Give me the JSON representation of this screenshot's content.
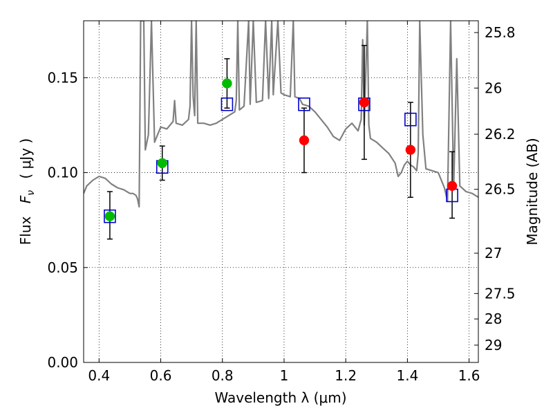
{
  "chart_data": {
    "type": "scatter",
    "xlabel": "Wavelength  λ (μm)",
    "ylabel": "Flux  F_ν  ( μJy )",
    "ylabel_parts": {
      "prefix": "Flux",
      "symbol": "F",
      "subscript": "ν",
      "unit": "( μJy )"
    },
    "ylabel_right": "Magnitude (AB)",
    "xlim": [
      0.35,
      1.63
    ],
    "ylim": [
      0.0,
      0.18
    ],
    "grid": true,
    "xticks": [
      {
        "value": 0.4,
        "label": "0.4"
      },
      {
        "value": 0.6,
        "label": "0.6"
      },
      {
        "value": 0.8,
        "label": "0.8"
      },
      {
        "value": 1.0,
        "label": "1"
      },
      {
        "value": 1.2,
        "label": "1.2"
      },
      {
        "value": 1.4,
        "label": "1.4"
      },
      {
        "value": 1.6,
        "label": "1.6"
      }
    ],
    "yticks": [
      {
        "value": 0.0,
        "label": "0.00"
      },
      {
        "value": 0.05,
        "label": "0.05"
      },
      {
        "value": 0.1,
        "label": "0.10"
      },
      {
        "value": 0.15,
        "label": "0.15"
      }
    ],
    "right_ticks": [
      {
        "value": 25.8,
        "label": "25.8"
      },
      {
        "value": 26.0,
        "label": "26"
      },
      {
        "value": 26.2,
        "label": "26.2"
      },
      {
        "value": 26.5,
        "label": "26.5"
      },
      {
        "value": 27.0,
        "label": "27"
      },
      {
        "value": 27.5,
        "label": "27.5"
      },
      {
        "value": 28.0,
        "label": "28"
      },
      {
        "value": 29.0,
        "label": "29"
      }
    ],
    "series": [
      {
        "kind": "spectrum",
        "color": "#808080",
        "points": [
          [
            0.35,
            0.089
          ],
          [
            0.36,
            0.093
          ],
          [
            0.38,
            0.096
          ],
          [
            0.4,
            0.098
          ],
          [
            0.42,
            0.097
          ],
          [
            0.44,
            0.094
          ],
          [
            0.46,
            0.092
          ],
          [
            0.48,
            0.091
          ],
          [
            0.5,
            0.089
          ],
          [
            0.51,
            0.089
          ],
          [
            0.52,
            0.088
          ],
          [
            0.525,
            0.086
          ],
          [
            0.53,
            0.082
          ],
          [
            0.535,
            0.18
          ],
          [
            0.545,
            0.18
          ],
          [
            0.55,
            0.112
          ],
          [
            0.56,
            0.12
          ],
          [
            0.57,
            0.18
          ],
          [
            0.58,
            0.116
          ],
          [
            0.6,
            0.124
          ],
          [
            0.62,
            0.123
          ],
          [
            0.64,
            0.127
          ],
          [
            0.645,
            0.138
          ],
          [
            0.65,
            0.126
          ],
          [
            0.67,
            0.125
          ],
          [
            0.69,
            0.128
          ],
          [
            0.695,
            0.135
          ],
          [
            0.7,
            0.18
          ],
          [
            0.705,
            0.14
          ],
          [
            0.71,
            0.13
          ],
          [
            0.715,
            0.18
          ],
          [
            0.72,
            0.126
          ],
          [
            0.74,
            0.126
          ],
          [
            0.76,
            0.125
          ],
          [
            0.78,
            0.126
          ],
          [
            0.8,
            0.128
          ],
          [
            0.82,
            0.13
          ],
          [
            0.84,
            0.132
          ],
          [
            0.845,
            0.138
          ],
          [
            0.85,
            0.18
          ],
          [
            0.855,
            0.133
          ],
          [
            0.87,
            0.135
          ],
          [
            0.885,
            0.18
          ],
          [
            0.89,
            0.136
          ],
          [
            0.9,
            0.18
          ],
          [
            0.91,
            0.137
          ],
          [
            0.93,
            0.138
          ],
          [
            0.94,
            0.18
          ],
          [
            0.95,
            0.139
          ],
          [
            0.96,
            0.18
          ],
          [
            0.965,
            0.141
          ],
          [
            0.98,
            0.18
          ],
          [
            0.99,
            0.142
          ],
          [
            1.0,
            0.141
          ],
          [
            1.02,
            0.14
          ],
          [
            1.03,
            0.18
          ],
          [
            1.035,
            0.14
          ],
          [
            1.05,
            0.139
          ],
          [
            1.06,
            0.136
          ],
          [
            1.08,
            0.135
          ],
          [
            1.1,
            0.132
          ],
          [
            1.12,
            0.128
          ],
          [
            1.14,
            0.124
          ],
          [
            1.16,
            0.119
          ],
          [
            1.18,
            0.117
          ],
          [
            1.2,
            0.123
          ],
          [
            1.22,
            0.126
          ],
          [
            1.24,
            0.122
          ],
          [
            1.25,
            0.128
          ],
          [
            1.255,
            0.17
          ],
          [
            1.26,
            0.125
          ],
          [
            1.27,
            0.18
          ],
          [
            1.275,
            0.125
          ],
          [
            1.28,
            0.118
          ],
          [
            1.3,
            0.116
          ],
          [
            1.32,
            0.113
          ],
          [
            1.34,
            0.11
          ],
          [
            1.36,
            0.105
          ],
          [
            1.37,
            0.098
          ],
          [
            1.38,
            0.1
          ],
          [
            1.39,
            0.104
          ],
          [
            1.4,
            0.106
          ],
          [
            1.41,
            0.104
          ],
          [
            1.42,
            0.103
          ],
          [
            1.43,
            0.101
          ],
          [
            1.435,
            0.11
          ],
          [
            1.44,
            0.18
          ],
          [
            1.45,
            0.12
          ],
          [
            1.46,
            0.102
          ],
          [
            1.48,
            0.101
          ],
          [
            1.5,
            0.1
          ],
          [
            1.52,
            0.092
          ],
          [
            1.53,
            0.085
          ],
          [
            1.54,
            0.18
          ],
          [
            1.55,
            0.092
          ],
          [
            1.56,
            0.16
          ],
          [
            1.57,
            0.093
          ],
          [
            1.59,
            0.09
          ],
          [
            1.61,
            0.089
          ],
          [
            1.63,
            0.087
          ]
        ]
      },
      {
        "kind": "model-squares",
        "color": "#0000cc",
        "points": [
          [
            0.435,
            0.077
          ],
          [
            0.605,
            0.103
          ],
          [
            0.815,
            0.136
          ],
          [
            1.065,
            0.136
          ],
          [
            1.26,
            0.136
          ],
          [
            1.41,
            0.128
          ],
          [
            1.545,
            0.088
          ]
        ]
      },
      {
        "kind": "observed-green",
        "color": "#00bb00",
        "points": [
          [
            0.435,
            0.077
          ],
          [
            0.605,
            0.105
          ],
          [
            0.815,
            0.147
          ]
        ]
      },
      {
        "kind": "observed-red",
        "color": "#ff0000",
        "points": [
          [
            1.065,
            0.117
          ],
          [
            1.26,
            0.137
          ],
          [
            1.41,
            0.112
          ],
          [
            1.545,
            0.093
          ]
        ]
      },
      {
        "kind": "errorbars",
        "color": "#000000",
        "points": [
          {
            "x": 0.435,
            "low": 0.065,
            "high": 0.09
          },
          {
            "x": 0.605,
            "low": 0.096,
            "high": 0.114
          },
          {
            "x": 0.815,
            "low": 0.134,
            "high": 0.16
          },
          {
            "x": 1.065,
            "low": 0.1,
            "high": 0.134
          },
          {
            "x": 1.26,
            "low": 0.107,
            "high": 0.167
          },
          {
            "x": 1.41,
            "low": 0.087,
            "high": 0.137
          },
          {
            "x": 1.545,
            "low": 0.076,
            "high": 0.111
          }
        ]
      }
    ]
  }
}
